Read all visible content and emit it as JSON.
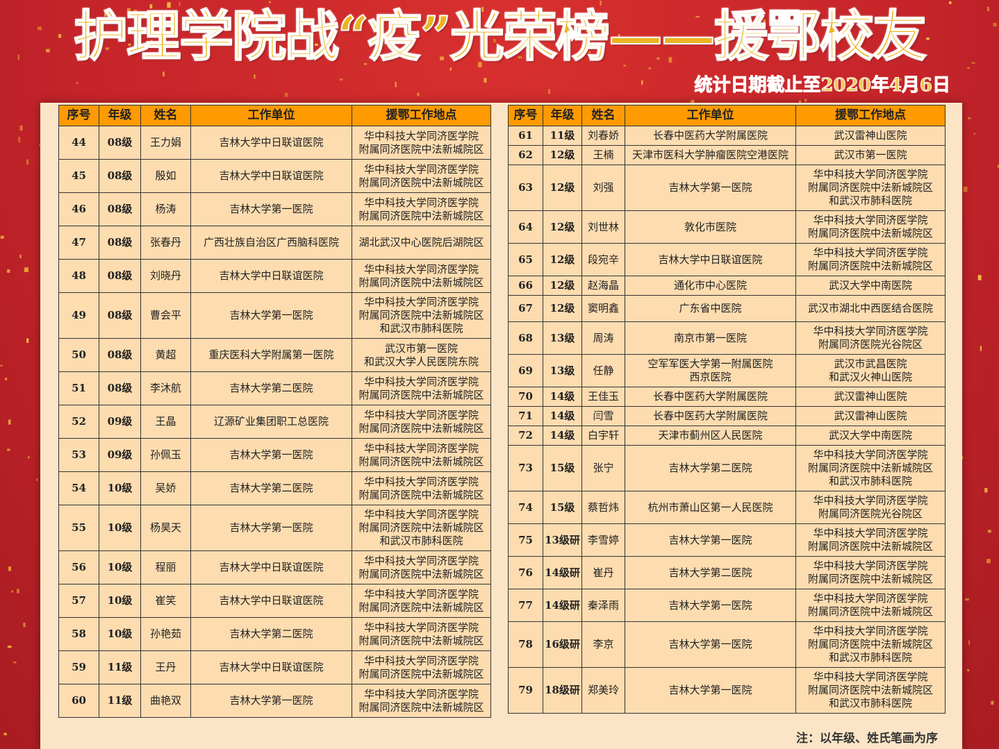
{
  "title": "护理学院战“疫”光荣榜——援鄂校友",
  "date_note": "统计日期截止至2020年4月6日",
  "footer_note": "注：以年级、姓氏笔画为序",
  "colors": {
    "background": "#c4242a",
    "header": "#ff9a00",
    "cell": "#fddcb0",
    "title": "#ebb421"
  },
  "headers": [
    "序号",
    "年级",
    "姓名",
    "工作单位",
    "援鄂工作地点"
  ],
  "left_rows": [
    [
      "44",
      "08级",
      "王力娟",
      "吉林大学中日联谊医院",
      "华中科技大学同济医学院\n附属同济医院中法新城院区"
    ],
    [
      "45",
      "08级",
      "殷如",
      "吉林大学中日联谊医院",
      "华中科技大学同济医学院\n附属同济医院中法新城院区"
    ],
    [
      "46",
      "08级",
      "杨涛",
      "吉林大学第一医院",
      "华中科技大学同济医学院\n附属同济医院中法新城院区"
    ],
    [
      "47",
      "08级",
      "张春丹",
      "广西壮族自治区广西脑科医院",
      "湖北武汉中心医院后湖院区"
    ],
    [
      "48",
      "08级",
      "刘晓丹",
      "吉林大学中日联谊医院",
      "华中科技大学同济医学院\n附属同济医院中法新城院区"
    ],
    [
      "49",
      "08级",
      "曹会平",
      "吉林大学第一医院",
      "华中科技大学同济医学院\n附属同济医院中法新城院区\n和武汉市肺科医院"
    ],
    [
      "50",
      "08级",
      "黄超",
      "重庆医科大学附属第一医院",
      "武汉市第一医院\n和武汉大学人民医院东院"
    ],
    [
      "51",
      "08级",
      "李沐航",
      "吉林大学第二医院",
      "华中科技大学同济医学院\n附属同济医院中法新城院区"
    ],
    [
      "52",
      "09级",
      "王晶",
      "辽源矿业集团职工总医院",
      "华中科技大学同济医学院\n附属同济医院中法新城院区"
    ],
    [
      "53",
      "09级",
      "孙佩玉",
      "吉林大学第一医院",
      "华中科技大学同济医学院\n附属同济医院中法新城院区"
    ],
    [
      "54",
      "10级",
      "吴娇",
      "吉林大学第二医院",
      "华中科技大学同济医学院\n附属同济医院中法新城院区"
    ],
    [
      "55",
      "10级",
      "杨昊天",
      "吉林大学第一医院",
      "华中科技大学同济医学院\n附属同济医院中法新城院区\n和武汉市肺科医院"
    ],
    [
      "56",
      "10级",
      "程丽",
      "吉林大学中日联谊医院",
      "华中科技大学同济医学院\n附属同济医院中法新城院区"
    ],
    [
      "57",
      "10级",
      "崔笑",
      "吉林大学中日联谊医院",
      "华中科技大学同济医学院\n附属同济医院中法新城院区"
    ],
    [
      "58",
      "10级",
      "孙艳茹",
      "吉林大学第二医院",
      "华中科技大学同济医学院\n附属同济医院中法新城院区"
    ],
    [
      "59",
      "11级",
      "王丹",
      "吉林大学中日联谊医院",
      "华中科技大学同济医学院\n附属同济医院中法新城院区"
    ],
    [
      "60",
      "11级",
      "曲艳双",
      "吉林大学第一医院",
      "华中科技大学同济医学院\n附属同济医院中法新城院区"
    ]
  ],
  "right_rows": [
    [
      "61",
      "11级",
      "刘春娇",
      "长春中医药大学附属医院",
      "武汉雷神山医院"
    ],
    [
      "62",
      "12级",
      "王楠",
      "天津市医科大学肿瘤医院空港医院",
      "武汉市第一医院"
    ],
    [
      "63",
      "12级",
      "刘强",
      "吉林大学第一医院",
      "华中科技大学同济医学院\n附属同济医院中法新城院区\n和武汉市肺科医院"
    ],
    [
      "64",
      "12级",
      "刘世林",
      "敦化市医院",
      "华中科技大学同济医学院\n附属同济医院中法新城院区"
    ],
    [
      "65",
      "12级",
      "段宛辛",
      "吉林大学中日联谊医院",
      "华中科技大学同济医学院\n附属同济医院中法新城院区"
    ],
    [
      "66",
      "12级",
      "赵海晶",
      "通化市中心医院",
      "武汉大学中南医院"
    ],
    [
      "67",
      "12级",
      "窦明鑫",
      "广东省中医院",
      "武汉市湖北中西医结合医院"
    ],
    [
      "68",
      "13级",
      "周涛",
      "南京市第一医院",
      "华中科技大学同济医学院\n附属同济医院光谷院区"
    ],
    [
      "69",
      "13级",
      "任静",
      "空军军医大学第一附属医院\n西京医院",
      "武汉市武昌医院\n和武汉火神山医院"
    ],
    [
      "70",
      "14级",
      "王佳玉",
      "长春中医药大学附属医院",
      "武汉雷神山医院"
    ],
    [
      "71",
      "14级",
      "闫雪",
      "长春中医药大学附属医院",
      "武汉雷神山医院"
    ],
    [
      "72",
      "14级",
      "白宇轩",
      "天津市蓟州区人民医院",
      "武汉大学中南医院"
    ],
    [
      "73",
      "15级",
      "张宁",
      "吉林大学第二医院",
      "华中科技大学同济医学院\n附属同济医院中法新城院区\n和武汉市肺科医院"
    ],
    [
      "74",
      "15级",
      "蔡哲炜",
      "杭州市萧山区第一人民医院",
      "华中科技大学同济医学院\n附属同济医院光谷院区"
    ],
    [
      "75",
      "13级研",
      "李雪婷",
      "吉林大学第一医院",
      "华中科技大学同济医学院\n附属同济医院中法新城院区"
    ],
    [
      "76",
      "14级研",
      "崔丹",
      "吉林大学第二医院",
      "华中科技大学同济医学院\n附属同济医院中法新城院区"
    ],
    [
      "77",
      "14级研",
      "秦泽雨",
      "吉林大学第一医院",
      "华中科技大学同济医学院\n附属同济医院中法新城院区"
    ],
    [
      "78",
      "16级研",
      "李京",
      "吉林大学第一医院",
      "华中科技大学同济医学院\n附属同济医院中法新城院区\n和武汉市肺科医院"
    ],
    [
      "79",
      "18级研",
      "郑美玲",
      "吉林大学第一医院",
      "华中科技大学同济医学院\n附属同济医院中法新城院区\n和武汉市肺科医院"
    ]
  ]
}
